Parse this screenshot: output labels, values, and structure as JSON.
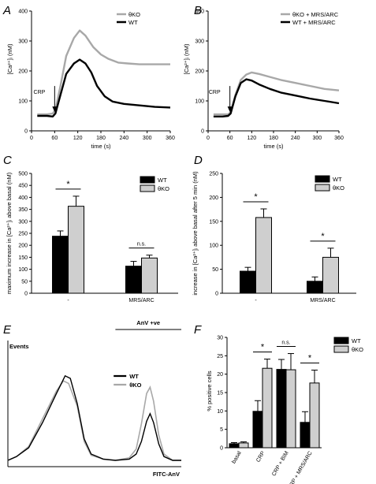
{
  "panels": [
    {
      "id": "A",
      "label": "A"
    },
    {
      "id": "B",
      "label": "B"
    },
    {
      "id": "C",
      "label": "C"
    },
    {
      "id": "D",
      "label": "D"
    },
    {
      "id": "E",
      "label": "E"
    },
    {
      "id": "F",
      "label": "F"
    }
  ],
  "colors": {
    "wt": "#000000",
    "ko": "#a8a8a8",
    "ko_bar": "#cfcfcf",
    "bar_edge": "#000000"
  },
  "chart_data": [
    {
      "panel": "A",
      "type": "line",
      "ylabel": "[Ca²⁺]ᵢ (nM)",
      "xlabel": "time (s)",
      "xlim": [
        0,
        360
      ],
      "ylim": [
        0,
        400
      ],
      "xticks": [
        "0",
        "60",
        "120",
        "180",
        "240",
        "300",
        "360"
      ],
      "yticks": [
        "0",
        "100",
        "200",
        "300",
        "400"
      ],
      "annotation": "CRP",
      "annotation_x": 60,
      "legend": [
        "θKO",
        "WT"
      ],
      "series": [
        {
          "name": "θKO",
          "key": "ko",
          "points": [
            [
              15,
              55
            ],
            [
              40,
              55
            ],
            [
              55,
              58
            ],
            [
              62,
              70
            ],
            [
              75,
              150
            ],
            [
              90,
              250
            ],
            [
              110,
              310
            ],
            [
              125,
              335
            ],
            [
              140,
              318
            ],
            [
              160,
              280
            ],
            [
              180,
              255
            ],
            [
              200,
              240
            ],
            [
              225,
              228
            ],
            [
              250,
              225
            ],
            [
              280,
              222
            ],
            [
              320,
              222
            ],
            [
              360,
              222
            ]
          ]
        },
        {
          "name": "WT",
          "key": "wt",
          "points": [
            [
              15,
              50
            ],
            [
              40,
              50
            ],
            [
              55,
              48
            ],
            [
              62,
              58
            ],
            [
              75,
              120
            ],
            [
              90,
              190
            ],
            [
              110,
              225
            ],
            [
              125,
              238
            ],
            [
              140,
              225
            ],
            [
              155,
              195
            ],
            [
              170,
              150
            ],
            [
              190,
              115
            ],
            [
              210,
              98
            ],
            [
              240,
              90
            ],
            [
              280,
              85
            ],
            [
              320,
              80
            ],
            [
              360,
              78
            ]
          ]
        }
      ]
    },
    {
      "panel": "B",
      "type": "line",
      "ylabel": "[Ca²⁺]ᵢ (nM)",
      "xlabel": "time (s)",
      "xlim": [
        0,
        360
      ],
      "ylim": [
        0,
        400
      ],
      "xticks": [
        "0",
        "60",
        "120",
        "180",
        "240",
        "300",
        "360"
      ],
      "yticks": [
        "0",
        "100",
        "200",
        "300",
        "400"
      ],
      "annotation": "CRP",
      "annotation_x": 60,
      "legend": [
        "θKO + MRS/ARC",
        "WT + MRS/ARC"
      ],
      "series": [
        {
          "name": "θKO + MRS/ARC",
          "key": "ko",
          "points": [
            [
              15,
              55
            ],
            [
              40,
              55
            ],
            [
              55,
              55
            ],
            [
              62,
              62
            ],
            [
              75,
              120
            ],
            [
              90,
              170
            ],
            [
              105,
              188
            ],
            [
              120,
              195
            ],
            [
              140,
              190
            ],
            [
              170,
              180
            ],
            [
              200,
              170
            ],
            [
              240,
              160
            ],
            [
              280,
              150
            ],
            [
              320,
              140
            ],
            [
              360,
              135
            ]
          ]
        },
        {
          "name": "WT + MRS/ARC",
          "key": "wt",
          "points": [
            [
              15,
              48
            ],
            [
              40,
              48
            ],
            [
              55,
              50
            ],
            [
              62,
              58
            ],
            [
              75,
              115
            ],
            [
              90,
              160
            ],
            [
              105,
              172
            ],
            [
              120,
              168
            ],
            [
              140,
              155
            ],
            [
              170,
              140
            ],
            [
              200,
              128
            ],
            [
              240,
              118
            ],
            [
              280,
              108
            ],
            [
              320,
              100
            ],
            [
              360,
              92
            ]
          ]
        }
      ]
    },
    {
      "panel": "C",
      "type": "bar",
      "ylabel": "maximum increase in [Ca²⁺]ᵢ above basal (nM)",
      "ylim": [
        0,
        500
      ],
      "yticks": [
        "0",
        "50",
        "100",
        "150",
        "200",
        "250",
        "300",
        "350",
        "400",
        "450",
        "500"
      ],
      "categories": [
        "-",
        "MRS/ARC"
      ],
      "legend": [
        "WT",
        "θKO"
      ],
      "series": [
        {
          "name": "WT",
          "key": "wt",
          "values": [
            238,
            113
          ],
          "errors": [
            22,
            20
          ]
        },
        {
          "name": "θKO",
          "key": "ko",
          "values": [
            363,
            147
          ],
          "errors": [
            42,
            12
          ]
        }
      ],
      "significance": [
        "*",
        "n.s."
      ]
    },
    {
      "panel": "D",
      "type": "bar",
      "ylabel": "increase in [Ca²⁺]ᵢ above basal after 5 min (nM)",
      "ylim": [
        0,
        250
      ],
      "yticks": [
        "0",
        "50",
        "100",
        "150",
        "200",
        "250"
      ],
      "categories": [
        "-",
        "MRS/ARC"
      ],
      "legend": [
        "WT",
        "θKO"
      ],
      "series": [
        {
          "name": "WT",
          "key": "wt",
          "values": [
            46,
            25
          ],
          "errors": [
            8,
            9
          ]
        },
        {
          "name": "θKO",
          "key": "ko",
          "values": [
            158,
            75
          ],
          "errors": [
            18,
            19
          ]
        }
      ],
      "significance": [
        "*",
        "*"
      ]
    },
    {
      "panel": "E",
      "type": "line",
      "ylabel": "Events",
      "xlabel": "FITC-AnV",
      "annotation": "AnV +ve",
      "legend": [
        "WT",
        "θKO"
      ],
      "xlim": [
        0,
        100
      ],
      "ylim": [
        0,
        100
      ],
      "series": [
        {
          "name": "WT",
          "key": "wt",
          "points": [
            [
              0,
              5
            ],
            [
              5,
              8
            ],
            [
              12,
              15
            ],
            [
              20,
              35
            ],
            [
              28,
              58
            ],
            [
              33,
              72
            ],
            [
              36,
              70
            ],
            [
              40,
              50
            ],
            [
              44,
              22
            ],
            [
              48,
              10
            ],
            [
              55,
              6
            ],
            [
              62,
              5
            ],
            [
              70,
              6
            ],
            [
              74,
              10
            ],
            [
              77,
              20
            ],
            [
              80,
              36
            ],
            [
              82,
              42
            ],
            [
              84,
              35
            ],
            [
              87,
              18
            ],
            [
              90,
              8
            ],
            [
              95,
              5
            ],
            [
              100,
              5
            ]
          ]
        },
        {
          "name": "θKO",
          "key": "ko",
          "points": [
            [
              0,
              5
            ],
            [
              5,
              8
            ],
            [
              12,
              16
            ],
            [
              20,
              38
            ],
            [
              28,
              60
            ],
            [
              32,
              68
            ],
            [
              35,
              66
            ],
            [
              40,
              48
            ],
            [
              44,
              20
            ],
            [
              48,
              9
            ],
            [
              55,
              6
            ],
            [
              62,
              5
            ],
            [
              70,
              7
            ],
            [
              74,
              14
            ],
            [
              77,
              34
            ],
            [
              80,
              58
            ],
            [
              82,
              63
            ],
            [
              84,
              52
            ],
            [
              87,
              25
            ],
            [
              90,
              10
            ],
            [
              95,
              5
            ],
            [
              100,
              5
            ]
          ]
        }
      ]
    },
    {
      "panel": "F",
      "type": "bar",
      "ylabel": "% positive cells",
      "ylim": [
        0,
        30
      ],
      "yticks": [
        "0",
        "5",
        "10",
        "15",
        "20",
        "25",
        "30"
      ],
      "categories": [
        "basal",
        "CRP",
        "CRP + BIM",
        "CRP + MRS/ARC"
      ],
      "legend": [
        "WT",
        "θKO"
      ],
      "series": [
        {
          "name": "WT",
          "key": "wt",
          "values": [
            1.1,
            9.9,
            21.3,
            6.9
          ],
          "errors": [
            0.3,
            2.9,
            2.7,
            2.9
          ]
        },
        {
          "name": "θKO",
          "key": "ko",
          "values": [
            1.3,
            21.6,
            21.2,
            17.6
          ],
          "errors": [
            0.3,
            2.5,
            4.4,
            3.5
          ]
        }
      ],
      "significance": [
        "",
        "*",
        "n.s.",
        "*"
      ]
    }
  ]
}
